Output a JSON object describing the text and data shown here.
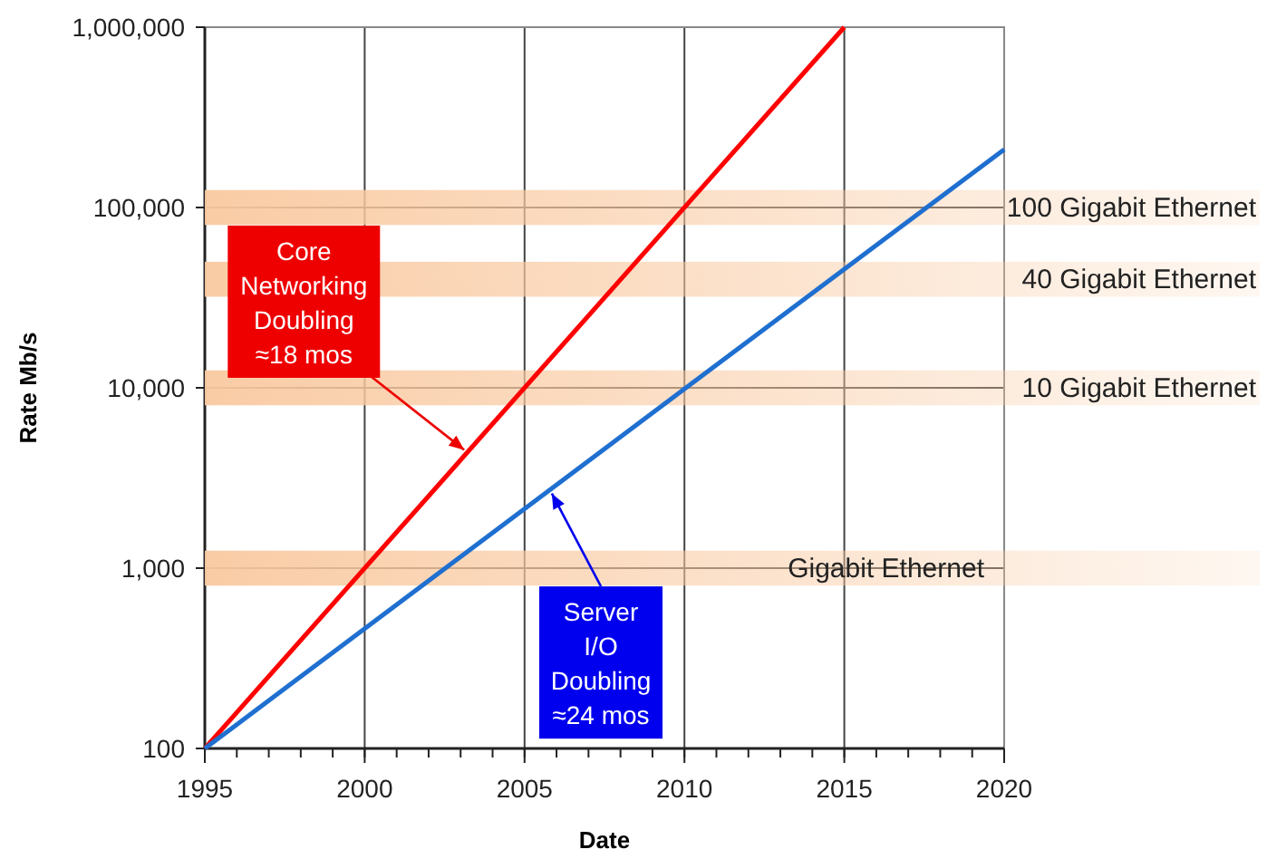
{
  "chart_data": {
    "type": "line",
    "xlabel": "Date",
    "ylabel": "Rate Mb/s",
    "log": "y",
    "grid": true,
    "marker": "none",
    "line_style": "solid",
    "xlim": [
      1995,
      2020
    ],
    "xticks": [
      1995,
      2000,
      2005,
      2010,
      2015,
      2020
    ],
    "ylim": [
      100,
      1000000
    ],
    "yticks": [
      {
        "value": 100,
        "label": "100"
      },
      {
        "value": 1000,
        "label": "1,000"
      },
      {
        "value": 10000,
        "label": "10,000"
      },
      {
        "value": 100000,
        "label": "100,000"
      },
      {
        "value": 1000000,
        "label": "1,000,000"
      }
    ],
    "series": [
      {
        "color": "#ff0000",
        "x": [
          1995,
          2015
        ],
        "values": [
          100,
          1000000
        ]
      },
      {
        "color": "#1f6fd0",
        "x": [
          1995,
          2020
        ],
        "values": [
          100,
          210000
        ]
      }
    ],
    "annotations": [
      {
        "text": "Core\nNetworking\nDoubling\n≈18 mos",
        "x": 2003.2,
        "y": 4400
      },
      {
        "text": "Server\nI/O\nDoubling\n≈24 mos",
        "x": 2005.8,
        "y": 2700
      }
    ],
    "bands": [
      {
        "axis": "y",
        "from": 800,
        "to": 1250,
        "label": "Gigabit Ethernet",
        "color": "#f9c9a0"
      },
      {
        "axis": "y",
        "from": 8000,
        "to": 12500,
        "label": "10 Gigabit Ethernet",
        "color": "#f9c9a0"
      },
      {
        "axis": "y",
        "from": 32000,
        "to": 50000,
        "label": "40 Gigabit Ethernet",
        "color": "#f9c9a0"
      },
      {
        "axis": "y",
        "from": 80000,
        "to": 125000,
        "label": "100 Gigabit Ethernet",
        "color": "#f9c9a0"
      }
    ]
  }
}
